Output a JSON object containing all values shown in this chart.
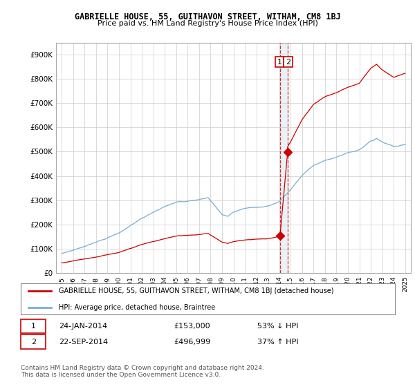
{
  "title": "GABRIELLE HOUSE, 55, GUITHAVON STREET, WITHAM, CM8 1BJ",
  "subtitle": "Price paid vs. HM Land Registry's House Price Index (HPI)",
  "ylabel_ticks": [
    "£0",
    "£100K",
    "£200K",
    "£300K",
    "£400K",
    "£500K",
    "£600K",
    "£700K",
    "£800K",
    "£900K"
  ],
  "ytick_values": [
    0,
    100000,
    200000,
    300000,
    400000,
    500000,
    600000,
    700000,
    800000,
    900000
  ],
  "ylim": [
    0,
    950000
  ],
  "red_color": "#cc0000",
  "blue_color": "#7aadcf",
  "marker1_date": 2014.07,
  "marker1_price": 153000,
  "marker2_date": 2014.73,
  "marker2_price": 496999,
  "legend_house": "GABRIELLE HOUSE, 55, GUITHAVON STREET, WITHAM, CM8 1BJ (detached house)",
  "legend_hpi": "HPI: Average price, detached house, Braintree",
  "table_row1": [
    "1",
    "24-JAN-2014",
    "£153,000",
    "53% ↓ HPI"
  ],
  "table_row2": [
    "2",
    "22-SEP-2014",
    "£496,999",
    "37% ↑ HPI"
  ],
  "footnote": "Contains HM Land Registry data © Crown copyright and database right 2024.\nThis data is licensed under the Open Government Licence v3.0.",
  "xlim_start": 1994.5,
  "xlim_end": 2025.5,
  "xtick_years": [
    1995,
    1996,
    1997,
    1998,
    1999,
    2000,
    2001,
    2002,
    2003,
    2004,
    2005,
    2006,
    2007,
    2008,
    2009,
    2010,
    2011,
    2012,
    2013,
    2014,
    2015,
    2016,
    2017,
    2018,
    2019,
    2020,
    2021,
    2022,
    2023,
    2024,
    2025
  ]
}
